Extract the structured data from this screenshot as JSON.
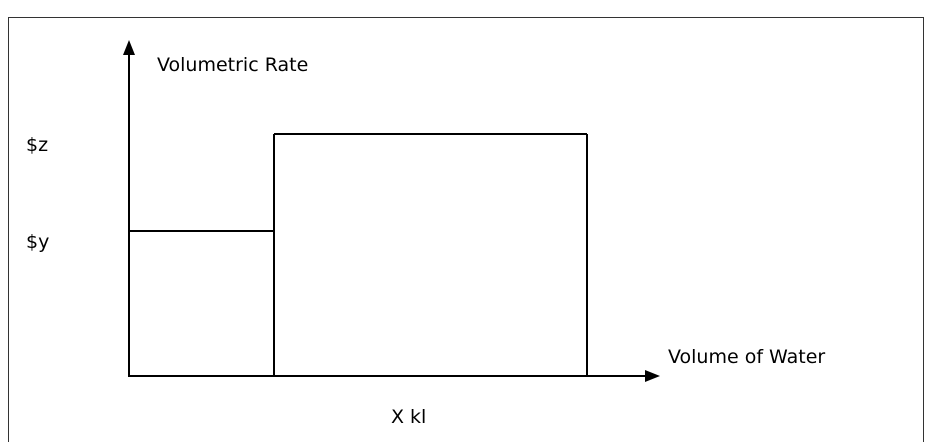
{
  "diagram": {
    "y_axis_label": "Volumetric Rate",
    "x_axis_label": "Volume of Water",
    "y_tick_high": "$z",
    "y_tick_low": "$y",
    "x_tick": "X kl"
  },
  "chart_data": {
    "type": "step",
    "xlabel": "Volume of Water",
    "ylabel": "Volumetric Rate",
    "x_tick_labels": [
      "X kl"
    ],
    "y_tick_labels": [
      "$y",
      "$z"
    ],
    "tiers": [
      {
        "from": "0",
        "to": "X kl",
        "rate": "$y"
      },
      {
        "from": "X kl",
        "to": "",
        "rate": "$z"
      }
    ]
  }
}
